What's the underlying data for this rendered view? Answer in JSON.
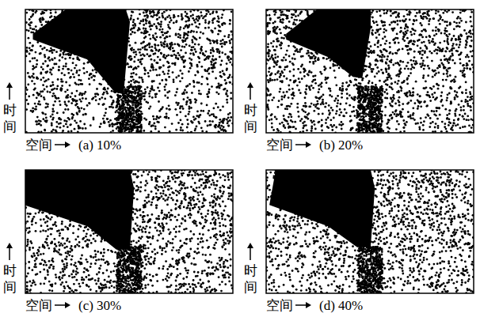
{
  "chart_data": [
    {
      "type": "scatter",
      "title": "(a) 10%",
      "xlabel": "空间",
      "ylabel": "时间",
      "xlim": [
        0,
        1
      ],
      "ylim": [
        0,
        1
      ],
      "tick_labels": false,
      "color": "#000000",
      "jam": {
        "space": [
          0.04,
          0.2,
          0.48,
          0.5,
          0.47,
          0.43,
          0.3,
          0.04
        ],
        "time": [
          0.8,
          1.0,
          1.0,
          0.9,
          0.32,
          0.34,
          0.6,
          0.76
        ]
      }
    },
    {
      "type": "scatter",
      "title": "(b) 20%",
      "xlabel": "空间",
      "ylabel": "时间",
      "xlim": [
        0,
        1
      ],
      "ylim": [
        0,
        1
      ],
      "tick_labels": false,
      "color": "#000000",
      "jam": {
        "space": [
          0.1,
          0.25,
          0.5,
          0.5,
          0.46,
          0.42,
          0.3,
          0.1
        ],
        "time": [
          0.8,
          1.0,
          1.0,
          0.85,
          0.45,
          0.46,
          0.62,
          0.76
        ]
      }
    },
    {
      "type": "scatter",
      "title": "(c) 30%",
      "xlabel": "空间",
      "ylabel": "时间",
      "xlim": [
        0,
        1
      ],
      "ylim": [
        0,
        1
      ],
      "tick_labels": false,
      "color": "#000000",
      "jam": {
        "space": [
          0.0,
          0.0,
          0.5,
          0.52,
          0.5,
          0.44,
          0.3,
          0.0
        ],
        "time": [
          0.72,
          1.0,
          1.0,
          0.85,
          0.36,
          0.36,
          0.55,
          0.72
        ]
      }
    },
    {
      "type": "scatter",
      "title": "(d) 40%",
      "xlabel": "空间",
      "ylabel": "时间",
      "xlim": [
        0,
        1
      ],
      "ylim": [
        0,
        1
      ],
      "tick_labels": false,
      "color": "#000000",
      "jam": {
        "space": [
          0.02,
          0.05,
          0.5,
          0.52,
          0.5,
          0.44,
          0.3,
          0.02
        ],
        "time": [
          0.72,
          1.0,
          1.0,
          0.85,
          0.38,
          0.38,
          0.55,
          0.72
        ]
      }
    }
  ]
}
